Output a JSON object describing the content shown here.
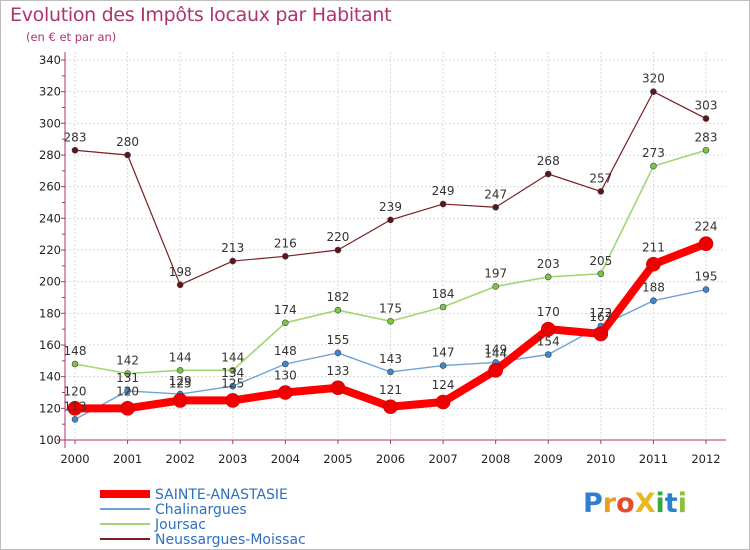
{
  "title": "Evolution des Impôts locaux par Habitant",
  "subtitle": "(en € et par an)",
  "logo": {
    "text": "ProXiti",
    "letters": [
      "P",
      "r",
      "o",
      "X",
      "i",
      "t",
      "i"
    ],
    "colors": [
      "#2f7fd0",
      "#e8a020",
      "#e84a2a",
      "#e8b820",
      "#3aa838",
      "#2f7fd0",
      "#8ac03a"
    ]
  },
  "colors": {
    "title": "#b0336e",
    "axis": "#b0336e",
    "grid": "#d9d9d9",
    "legend_text": "#2f6fc0"
  },
  "chart_data": {
    "type": "line",
    "title": "Evolution des Impôts locaux par Habitant",
    "subtitle": "(en € et par an)",
    "xlabel": "",
    "ylabel": "",
    "ylim": [
      100,
      340
    ],
    "ytick_step": 20,
    "x": [
      "2000",
      "2001",
      "2002",
      "2003",
      "2004",
      "2005",
      "2006",
      "2007",
      "2008",
      "2009",
      "2010",
      "2011",
      "2012"
    ],
    "yticks": [
      "100",
      "120",
      "140",
      "160",
      "180",
      "200",
      "220",
      "240",
      "260",
      "280",
      "300",
      "320",
      "340"
    ],
    "series": [
      {
        "name": "Neussargues-Moissac",
        "color": "#7a1f24",
        "marker": "#5e1418",
        "values": [
          283,
          280,
          198,
          213,
          216,
          220,
          239,
          249,
          247,
          268,
          257,
          320,
          303
        ],
        "labels": [
          "283",
          "280",
          "198",
          "213",
          "216",
          "220",
          "239",
          "249",
          "247",
          "268",
          "257",
          "320",
          "303"
        ],
        "width": 1.2,
        "r": 3
      },
      {
        "name": "Joursac",
        "color": "#9ed872",
        "marker": "#7cc446",
        "values": [
          148,
          142,
          144,
          144,
          174,
          182,
          175,
          184,
          197,
          203,
          205,
          273,
          283
        ],
        "labels": [
          "148",
          "142",
          "144",
          "144",
          "174",
          "182",
          "175",
          "184",
          "197",
          "203",
          "205",
          "273",
          "283"
        ],
        "width": 1.6,
        "r": 3
      },
      {
        "name": "Chalinargues",
        "color": "#6fa3d6",
        "marker": "#3d86d0",
        "values": [
          113,
          131,
          129,
          134,
          148,
          155,
          143,
          147,
          149,
          154,
          172,
          188,
          195
        ],
        "labels": [
          "113",
          "131",
          "129",
          "134",
          "148",
          "155",
          "143",
          "147",
          "149",
          "154",
          "172",
          "188",
          "195"
        ],
        "width": 1.4,
        "r": 3
      },
      {
        "name": "SAINTE-ANASTASIE",
        "color": "#ff0000",
        "marker": "#ee0000",
        "values": [
          120,
          120,
          125,
          125,
          130,
          133,
          121,
          124,
          144,
          170,
          167,
          211,
          224
        ],
        "labels": [
          "120",
          "120",
          "125",
          "125",
          "130",
          "133",
          "121",
          "124",
          "144",
          "170",
          "167",
          "211",
          "224"
        ],
        "width": 8,
        "r": 7
      }
    ],
    "legend": [
      "SAINTE-ANASTASIE",
      "Chalinargues",
      "Joursac",
      "Neussargues-Moissac"
    ],
    "grid": true,
    "legend_position": "bottom-left"
  }
}
